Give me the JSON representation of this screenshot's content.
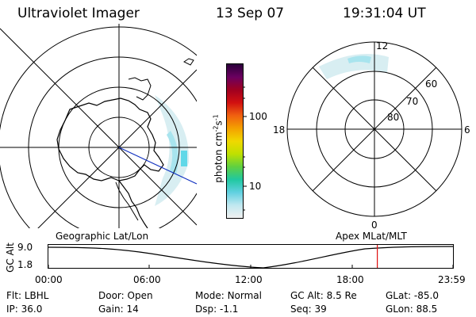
{
  "header": {
    "instrument": "Ultraviolet Imager",
    "date": "13 Sep 07",
    "time": "19:31:04 UT"
  },
  "colorbar": {
    "unit_label": "photon cm",
    "unit_sup1": "-2",
    "unit_s": "s",
    "unit_sup2": "-1",
    "ticks": [
      "100",
      "10"
    ],
    "colors": [
      "#2a003a",
      "#6b0060",
      "#a00020",
      "#d11010",
      "#f06010",
      "#f4a000",
      "#f0d800",
      "#c0e000",
      "#60d040",
      "#20c8a0",
      "#60d0e0",
      "#c0e8f0",
      "#f0f0f0"
    ]
  },
  "left_map": {
    "label": "Geographic Lat/Lon"
  },
  "right_map": {
    "label": "Apex MLat/MLT",
    "mlt_labels": {
      "top": "12",
      "left": "18",
      "right": "6",
      "bottom": "0"
    },
    "lat_labels": [
      "60",
      "70",
      "80"
    ]
  },
  "altitude_plot": {
    "ylabel": "GC Alt",
    "yticks": [
      "9.0",
      "1.8"
    ],
    "xticks": [
      "00:00",
      "06:00",
      "12:00",
      "18:00",
      "23:59"
    ],
    "marker_time_hours": 19.52
  },
  "info": {
    "row1": [
      {
        "key": "Flt:",
        "value": "LBHL"
      },
      {
        "key": "Door:",
        "value": "Open"
      },
      {
        "key": "Mode:",
        "value": "Normal"
      },
      {
        "key": "GC Alt:",
        "value": "8.5 Re"
      },
      {
        "key": "GLat:",
        "value": "-85.0"
      }
    ],
    "row2": [
      {
        "key": "IP:",
        "value": "36.0"
      },
      {
        "key": "Gain:",
        "value": "14"
      },
      {
        "key": "Dsp:",
        "value": "-1.1"
      },
      {
        "key": "Seq:",
        "value": "39"
      },
      {
        "key": "GLon:",
        "value": "88.5"
      }
    ]
  }
}
